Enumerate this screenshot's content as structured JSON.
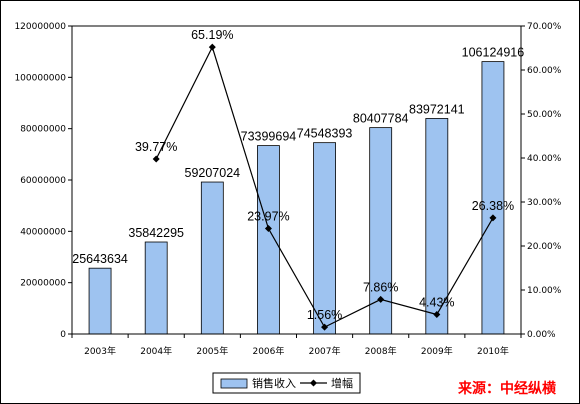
{
  "chart_data": {
    "type": "bar+line",
    "categories": [
      "2003年",
      "2004年",
      "2005年",
      "2006年",
      "2007年",
      "2008年",
      "2009年",
      "2010年"
    ],
    "series": [
      {
        "name": "销售收入",
        "type": "bar",
        "axis": "left",
        "values": [
          25643634,
          35842295,
          59207024,
          73399694,
          74548393,
          80407784,
          83972141,
          106124916
        ],
        "labels": [
          "25643634",
          "35842295",
          "59207024",
          "73399694",
          "74548393",
          "80407784",
          "83972141",
          "106124916"
        ],
        "color": "#9ec3f0"
      },
      {
        "name": "增幅",
        "type": "line",
        "axis": "right",
        "values": [
          null,
          39.77,
          65.19,
          23.97,
          1.56,
          7.86,
          4.43,
          26.38
        ],
        "labels": [
          "",
          "39.77%",
          "65.19%",
          "23.97%",
          "1.56%",
          "7.86%",
          "4.43%",
          "26.38%"
        ],
        "color": "#000000"
      }
    ],
    "ylim_left": [
      0,
      120000000
    ],
    "yticks_left": [
      "0",
      "20000000",
      "40000000",
      "60000000",
      "80000000",
      "100000000",
      "120000000"
    ],
    "ylim_right": [
      0,
      70
    ],
    "yticks_right": [
      "0.00%",
      "10.00%",
      "20.00%",
      "30.00%",
      "40.00%",
      "50.00%",
      "60.00%",
      "70.00%"
    ],
    "grid": false,
    "legend_position": "bottom"
  },
  "source_text": "来源：中经纵横"
}
